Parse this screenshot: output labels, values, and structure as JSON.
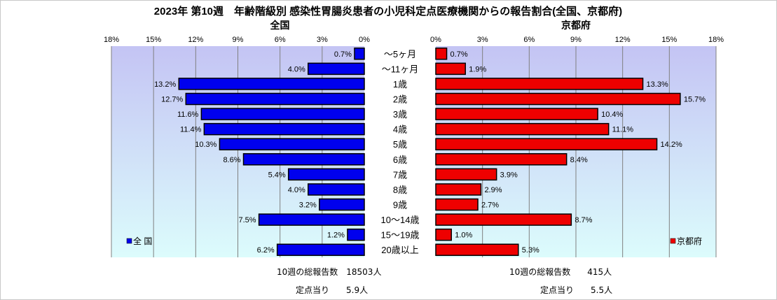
{
  "chart_data": {
    "type": "bar",
    "title": "2023年 第10週　年齢階級別 感染性胃腸炎患者の小児科定点医療機関からの報告割合(全国、京都府)",
    "categories": [
      "～5ヶ月",
      "～11ヶ月",
      "1歳",
      "2歳",
      "3歳",
      "4歳",
      "5歳",
      "6歳",
      "7歳",
      "8歳",
      "9歳",
      "10～14歳",
      "15～19歳",
      "20歳以上"
    ],
    "xlim": [
      0,
      18
    ],
    "ticks": [
      "0%",
      "3%",
      "6%",
      "9%",
      "12%",
      "15%",
      "18%"
    ],
    "tick_values": [
      0,
      3,
      6,
      9,
      12,
      15,
      18
    ],
    "grid": true,
    "series": [
      {
        "name": "全 国",
        "panel_title": "全国",
        "color": "#0000ee",
        "legend_position": "bottom-left",
        "values": [
          0.7,
          4.0,
          13.2,
          12.7,
          11.6,
          11.4,
          10.3,
          8.6,
          5.4,
          4.0,
          3.2,
          7.5,
          1.2,
          6.2
        ],
        "labels": [
          "0.7%",
          "4.0%",
          "13.2%",
          "12.7%",
          "11.6%",
          "11.4%",
          "10.3%",
          "8.6%",
          "5.4%",
          "4.0%",
          "3.2%",
          "7.5%",
          "1.2%",
          "6.2%"
        ]
      },
      {
        "name": "京都府",
        "panel_title": "京都府",
        "color": "#ee0000",
        "legend_position": "bottom-right",
        "values": [
          0.7,
          1.9,
          13.3,
          15.7,
          10.4,
          11.1,
          14.2,
          8.4,
          3.9,
          2.9,
          2.7,
          8.7,
          1.0,
          5.3
        ],
        "labels": [
          "0.7%",
          "1.9%",
          "13.3%",
          "15.7%",
          "10.4%",
          "11.1%",
          "14.2%",
          "8.4%",
          "3.9%",
          "2.9%",
          "2.7%",
          "8.7%",
          "1.0%",
          "5.3%"
        ]
      }
    ]
  },
  "footer": {
    "national_total": "10週の総報告数　18503人",
    "national_per_site": "定点当り　　5.9人",
    "kyoto_total": "10週の総報告数　　415人",
    "kyoto_per_site": "定点当り　　5.5人"
  }
}
